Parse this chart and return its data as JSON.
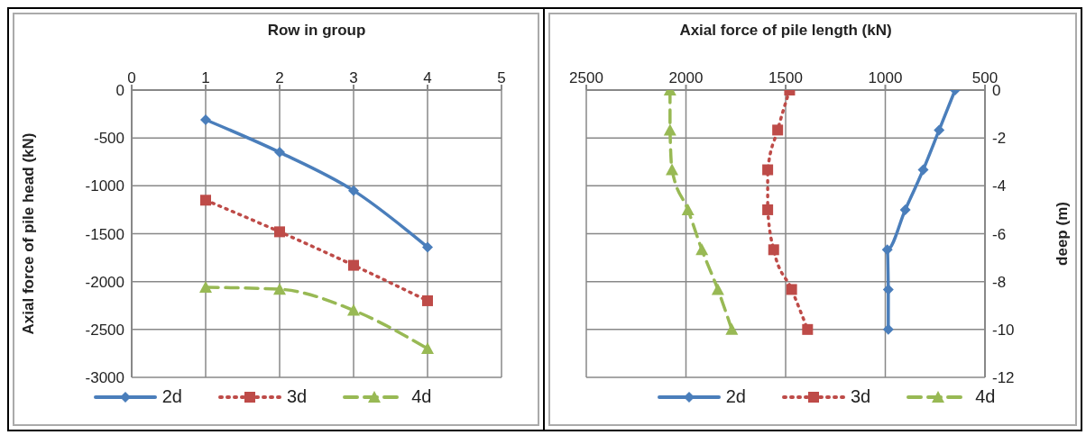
{
  "chart_data": [
    {
      "type": "line",
      "xlabel": "Row in group",
      "ylabel": "Axial force of pile head (kN)",
      "x": [
        1,
        2,
        3,
        4
      ],
      "xlim": [
        0,
        5
      ],
      "xticks": [
        0,
        1,
        2,
        3,
        4,
        5
      ],
      "ylim": [
        -3000,
        0
      ],
      "yticks": [
        -3000,
        -2500,
        -2000,
        -1500,
        -1000,
        -500,
        0
      ],
      "grid": true,
      "legend": "bottom",
      "series": [
        {
          "name": "2d",
          "color": "#4a7ebb",
          "marker": "diamond",
          "line_style": "solid",
          "values": [
            -310,
            -650,
            -1050,
            -1640
          ]
        },
        {
          "name": "3d",
          "color": "#be4b48",
          "marker": "square",
          "line_style": "dotted",
          "values": [
            -1150,
            -1480,
            -1830,
            -2200
          ]
        },
        {
          "name": "4d",
          "color": "#98b954",
          "marker": "triangle",
          "line_style": "dashed",
          "values": [
            -2060,
            -2080,
            -2300,
            -2700
          ]
        }
      ]
    },
    {
      "type": "line",
      "xlabel": "Axial force of pile length (kN)",
      "ylabel": "deep (m)",
      "xlim": [
        2500,
        500
      ],
      "xticks": [
        2500,
        2000,
        1500,
        1000,
        500
      ],
      "ylim": [
        -12,
        0
      ],
      "yticks": [
        -12,
        -10,
        -8,
        -6,
        -4,
        -2,
        0
      ],
      "grid": true,
      "legend": "bottom",
      "series": [
        {
          "name": "2d",
          "color": "#4a7ebb",
          "marker": "diamond",
          "line_style": "solid",
          "x": [
            650,
            730,
            810,
            900,
            990,
            985,
            985
          ],
          "values": [
            0,
            -1.67,
            -3.33,
            -5,
            -6.67,
            -8.33,
            -10
          ]
        },
        {
          "name": "3d",
          "color": "#be4b48",
          "marker": "square",
          "line_style": "dotted",
          "x": [
            1480,
            1540,
            1590,
            1590,
            1560,
            1470,
            1390
          ],
          "values": [
            0,
            -1.67,
            -3.33,
            -5,
            -6.67,
            -8.33,
            -10
          ]
        },
        {
          "name": "4d",
          "color": "#98b954",
          "marker": "triangle",
          "line_style": "dashed",
          "x": [
            2080,
            2080,
            2070,
            1990,
            1920,
            1840,
            1770
          ],
          "values": [
            0,
            -1.67,
            -3.33,
            -5,
            -6.67,
            -8.33,
            -10
          ]
        }
      ]
    }
  ]
}
